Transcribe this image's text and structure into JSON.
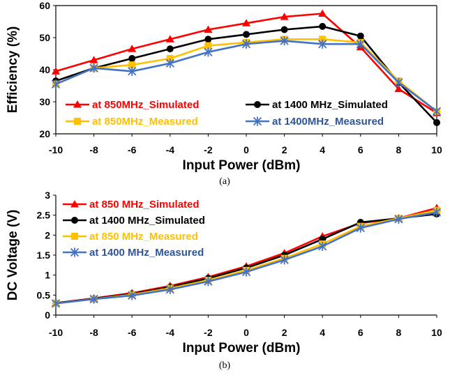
{
  "chart_data": [
    {
      "type": "line",
      "caption": "(a)",
      "xlabel": "Input Power (dBm)",
      "ylabel": "Efficiency (%)",
      "x": [
        -10,
        -8,
        -6,
        -4,
        -2,
        0,
        2,
        4,
        6,
        8,
        10
      ],
      "xlim": [
        -10,
        10
      ],
      "ylim": [
        20,
        60
      ],
      "x_ticks": [
        -10,
        -8,
        -6,
        -4,
        -2,
        0,
        2,
        4,
        6,
        8,
        10
      ],
      "y_ticks": [
        20,
        30,
        40,
        50,
        60
      ],
      "grid": false,
      "series": [
        {
          "name": "at 850MHz_Simulated",
          "color": "#ff0000",
          "marker": "triangle",
          "legend_color": "#ff0000",
          "values": [
            39.5,
            43,
            46.5,
            49.5,
            52.5,
            54.5,
            56.5,
            57.5,
            47,
            34,
            26.5
          ]
        },
        {
          "name": "at 1400 MHz_Simulated",
          "color": "#000000",
          "marker": "circle",
          "legend_color": "#000000",
          "values": [
            36.5,
            40.5,
            43.5,
            46.5,
            49.5,
            51,
            52.5,
            53.5,
            50.5,
            36,
            23.5
          ]
        },
        {
          "name": "at 850MHz_Measured",
          "color": "#ffc000",
          "marker": "square",
          "legend_color": "#ffc000",
          "values": [
            35.5,
            40.5,
            41.5,
            43.5,
            47.5,
            48.5,
            49.5,
            49.5,
            48.5,
            36.5,
            27
          ]
        },
        {
          "name": "at 1400MHz_Measured",
          "color": "#4472c4",
          "marker": "star",
          "legend_color": "#2f5597",
          "values": [
            35.5,
            40.5,
            39.5,
            42,
            45.5,
            48,
            49,
            48,
            48,
            36,
            27
          ]
        }
      ],
      "legend_placement": "inside-bottom"
    },
    {
      "type": "line",
      "caption": "(b)",
      "xlabel": "Input Power (dBm)",
      "ylabel": "DC Voltage (V)",
      "x": [
        -10,
        -8,
        -6,
        -4,
        -2,
        0,
        2,
        4,
        6,
        8,
        10
      ],
      "xlim": [
        -10,
        10
      ],
      "ylim": [
        0,
        3
      ],
      "x_ticks": [
        -10,
        -8,
        -6,
        -4,
        -2,
        0,
        2,
        4,
        6,
        8,
        10
      ],
      "y_ticks": [
        0,
        0.5,
        1,
        1.5,
        2,
        2.5,
        3
      ],
      "y_tick_labels": [
        "0",
        "0.5",
        "1",
        "1.5",
        "2",
        "2.5",
        "3"
      ],
      "grid": false,
      "series": [
        {
          "name": "at 850 MHz_Simulated",
          "color": "#ff0000",
          "marker": "triangle",
          "legend_color": "#ff0000",
          "values": [
            0.3,
            0.42,
            0.55,
            0.73,
            0.95,
            1.22,
            1.55,
            1.97,
            2.3,
            2.42,
            2.68
          ]
        },
        {
          "name": "at 1400 MHz_Simulated",
          "color": "#000000",
          "marker": "circle",
          "legend_color": "#000000",
          "values": [
            0.3,
            0.41,
            0.53,
            0.7,
            0.92,
            1.18,
            1.5,
            1.9,
            2.32,
            2.42,
            2.53
          ]
        },
        {
          "name": "at 850 MHz_Measured",
          "color": "#ffc000",
          "marker": "square",
          "legend_color": "#ffc000",
          "values": [
            0.29,
            0.4,
            0.51,
            0.67,
            0.87,
            1.12,
            1.42,
            1.78,
            2.22,
            2.42,
            2.62
          ]
        },
        {
          "name": "at 1400 MHz_Measured",
          "color": "#4472c4",
          "marker": "star",
          "legend_color": "#2f5597",
          "values": [
            0.29,
            0.4,
            0.49,
            0.64,
            0.84,
            1.08,
            1.38,
            1.72,
            2.18,
            2.4,
            2.57
          ]
        }
      ],
      "legend_placement": "top-left"
    }
  ]
}
